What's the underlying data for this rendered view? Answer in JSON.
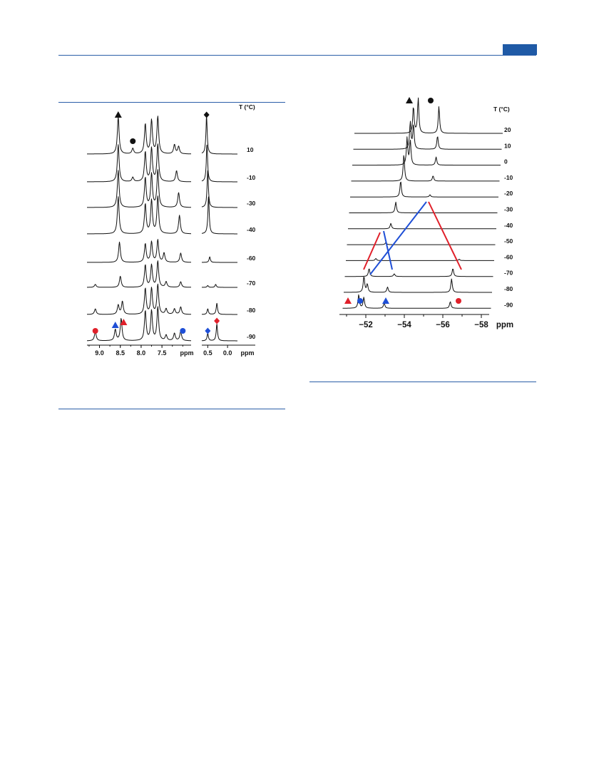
{
  "page": {
    "accent_color": "#1f5aa6"
  },
  "chart_data": [
    {
      "type": "line",
      "title": "",
      "xlabel": "ppm",
      "temperature_header": "T (°C)",
      "temperatures": [
        "10",
        "-10",
        "-30",
        "-40",
        "-60",
        "-70",
        "-80",
        "-90"
      ],
      "xlim_left_panel": [
        9.3,
        6.8
      ],
      "xticks_left_panel": [
        "9.0",
        "8.5",
        "8.0",
        "7.5"
      ],
      "xlabel_left_panel": "ppm",
      "xlim_right_panel": [
        0.65,
        -0.25
      ],
      "xticks_right_panel": [
        "0.5",
        "0.0"
      ],
      "xlabel_right_panel": "ppm",
      "series": [
        {
          "temperature": "10",
          "peaks": [
            [
              8.55,
              1.0
            ],
            [
              8.2,
              0.15
            ],
            [
              7.9,
              0.8
            ],
            [
              7.75,
              0.9
            ],
            [
              7.6,
              1.0
            ],
            [
              7.2,
              0.25
            ],
            [
              7.1,
              0.2
            ],
            [
              0.53,
              1.0
            ]
          ]
        },
        {
          "temperature": "-10",
          "peaks": [
            [
              8.55,
              1.0
            ],
            [
              8.2,
              0.12
            ],
            [
              7.9,
              0.8
            ],
            [
              7.75,
              0.9
            ],
            [
              7.6,
              1.0
            ],
            [
              7.15,
              0.3
            ],
            [
              0.52,
              1.0
            ]
          ]
        },
        {
          "temperature": "-30",
          "peaks": [
            [
              8.55,
              1.0
            ],
            [
              7.9,
              0.8
            ],
            [
              7.75,
              0.9
            ],
            [
              7.6,
              1.0
            ],
            [
              7.1,
              0.4
            ],
            [
              0.5,
              1.0
            ]
          ]
        },
        {
          "temperature": "-40",
          "peaks": [
            [
              8.55,
              1.0
            ],
            [
              7.9,
              0.8
            ],
            [
              7.75,
              0.9
            ],
            [
              7.6,
              1.0
            ],
            [
              7.08,
              0.5
            ],
            [
              0.48,
              1.0
            ]
          ]
        },
        {
          "temperature": "-60",
          "peaks": [
            [
              8.52,
              0.55
            ],
            [
              7.9,
              0.5
            ],
            [
              7.75,
              0.55
            ],
            [
              7.6,
              0.6
            ],
            [
              7.45,
              0.25
            ],
            [
              7.05,
              0.25
            ],
            [
              0.45,
              0.15
            ]
          ]
        },
        {
          "temperature": "-70",
          "peaks": [
            [
              9.1,
              0.08
            ],
            [
              8.5,
              0.3
            ],
            [
              7.9,
              0.6
            ],
            [
              7.75,
              0.6
            ],
            [
              7.6,
              0.7
            ],
            [
              7.4,
              0.15
            ],
            [
              7.05,
              0.15
            ],
            [
              0.5,
              0.05
            ],
            [
              0.3,
              0.08
            ]
          ]
        },
        {
          "temperature": "-80",
          "peaks": [
            [
              9.1,
              0.15
            ],
            [
              8.55,
              0.25
            ],
            [
              8.45,
              0.35
            ],
            [
              7.9,
              0.7
            ],
            [
              7.75,
              0.7
            ],
            [
              7.6,
              0.8
            ],
            [
              7.4,
              0.15
            ],
            [
              7.2,
              0.15
            ],
            [
              7.05,
              0.2
            ],
            [
              0.5,
              0.15
            ],
            [
              0.27,
              0.3
            ]
          ]
        },
        {
          "temperature": "-90",
          "peaks": [
            [
              9.1,
              0.25
            ],
            [
              8.62,
              0.3
            ],
            [
              8.48,
              0.6
            ],
            [
              7.9,
              0.8
            ],
            [
              7.75,
              0.8
            ],
            [
              7.6,
              0.9
            ],
            [
              7.4,
              0.15
            ],
            [
              7.2,
              0.2
            ],
            [
              7.05,
              0.25
            ],
            [
              0.5,
              0.2
            ],
            [
              0.27,
              0.45
            ]
          ]
        }
      ],
      "markers": [
        {
          "shape": "triangle",
          "color": "#111111",
          "x": 8.55,
          "row": "10"
        },
        {
          "shape": "circle",
          "color": "#111111",
          "x": 8.2,
          "row": "10"
        },
        {
          "shape": "diamond",
          "color": "#111111",
          "x": 0.53,
          "row": "10"
        },
        {
          "shape": "circle",
          "color": "#e0202a",
          "x": 9.1,
          "row": "-90"
        },
        {
          "shape": "triangle",
          "color": "#1f4fd6",
          "x": 8.62,
          "row": "-90"
        },
        {
          "shape": "triangle",
          "color": "#e0202a",
          "x": 8.42,
          "row": "-90"
        },
        {
          "shape": "circle",
          "color": "#1f4fd6",
          "x": 7.0,
          "row": "-90"
        },
        {
          "shape": "diamond",
          "color": "#1f4fd6",
          "x": 0.5,
          "row": "-90"
        },
        {
          "shape": "diamond",
          "color": "#e0202a",
          "x": 0.27,
          "row": "-90"
        }
      ]
    },
    {
      "type": "line",
      "title": "",
      "xlabel": "ppm",
      "temperature_header": "T (°C)",
      "temperatures": [
        "20",
        "10",
        "0",
        "-10",
        "-20",
        "-30",
        "-40",
        "-50",
        "-60",
        "-70",
        "-80",
        "-90"
      ],
      "xlim": [
        -50.5,
        -58.6
      ],
      "xticks": [
        "−52",
        "−54",
        "−56",
        "−58"
      ],
      "series": [
        {
          "temperature": "20",
          "peaks": [
            [
              -53.8,
              1.0
            ],
            [
              -54.1,
              1.3
            ],
            [
              -55.4,
              1.0
            ]
          ]
        },
        {
          "temperature": "10",
          "peaks": [
            [
              -53.7,
              1.0
            ],
            [
              -53.9,
              0.9
            ],
            [
              -55.4,
              0.5
            ]
          ]
        },
        {
          "temperature": "0",
          "peaks": [
            [
              -53.6,
              1.0
            ],
            [
              -53.8,
              0.9
            ],
            [
              -55.4,
              0.3
            ]
          ]
        },
        {
          "temperature": "-10",
          "peaks": [
            [
              -53.5,
              1.0
            ],
            [
              -55.3,
              0.2
            ]
          ]
        },
        {
          "temperature": "-20",
          "peaks": [
            [
              -53.4,
              0.6
            ],
            [
              -55.2,
              0.08
            ]
          ]
        },
        {
          "temperature": "-30",
          "peaks": [
            [
              -53.2,
              0.4
            ]
          ]
        },
        {
          "temperature": "-40",
          "peaks": [
            [
              -53.0,
              0.2
            ]
          ]
        },
        {
          "temperature": "-50",
          "peaks": [
            [
              -52.8,
              0.08
            ]
          ]
        },
        {
          "temperature": "-60",
          "peaks": [
            [
              -52.3,
              0.08
            ],
            [
              -57.3,
              0.05
            ]
          ]
        },
        {
          "temperature": "-70",
          "peaks": [
            [
              -52.0,
              0.3
            ],
            [
              -53.5,
              0.1
            ],
            [
              -57.0,
              0.3
            ]
          ]
        },
        {
          "temperature": "-80",
          "peaks": [
            [
              -51.8,
              0.6
            ],
            [
              -52.0,
              0.3
            ],
            [
              -53.2,
              0.2
            ],
            [
              -57.0,
              0.5
            ]
          ]
        },
        {
          "temperature": "-90",
          "peaks": [
            [
              -51.6,
              0.5
            ],
            [
              -51.9,
              0.4
            ],
            [
              -53.1,
              0.2
            ],
            [
              -57.0,
              0.25
            ]
          ]
        }
      ],
      "markers": [
        {
          "shape": "triangle",
          "color": "#111111",
          "x": -54.4,
          "row": "above"
        },
        {
          "shape": "circle",
          "color": "#111111",
          "x": -55.4,
          "row": "above"
        },
        {
          "shape": "triangle",
          "color": "#e0202a",
          "x": -51.2,
          "row": "-90"
        },
        {
          "shape": "circle",
          "color": "#1f4fd6",
          "x": -51.9,
          "row": "-90"
        },
        {
          "shape": "triangle",
          "color": "#1f4fd6",
          "x": -53.1,
          "row": "-90"
        },
        {
          "shape": "circle",
          "color": "#e0202a",
          "x": -57.0,
          "row": "-90"
        }
      ]
    }
  ]
}
